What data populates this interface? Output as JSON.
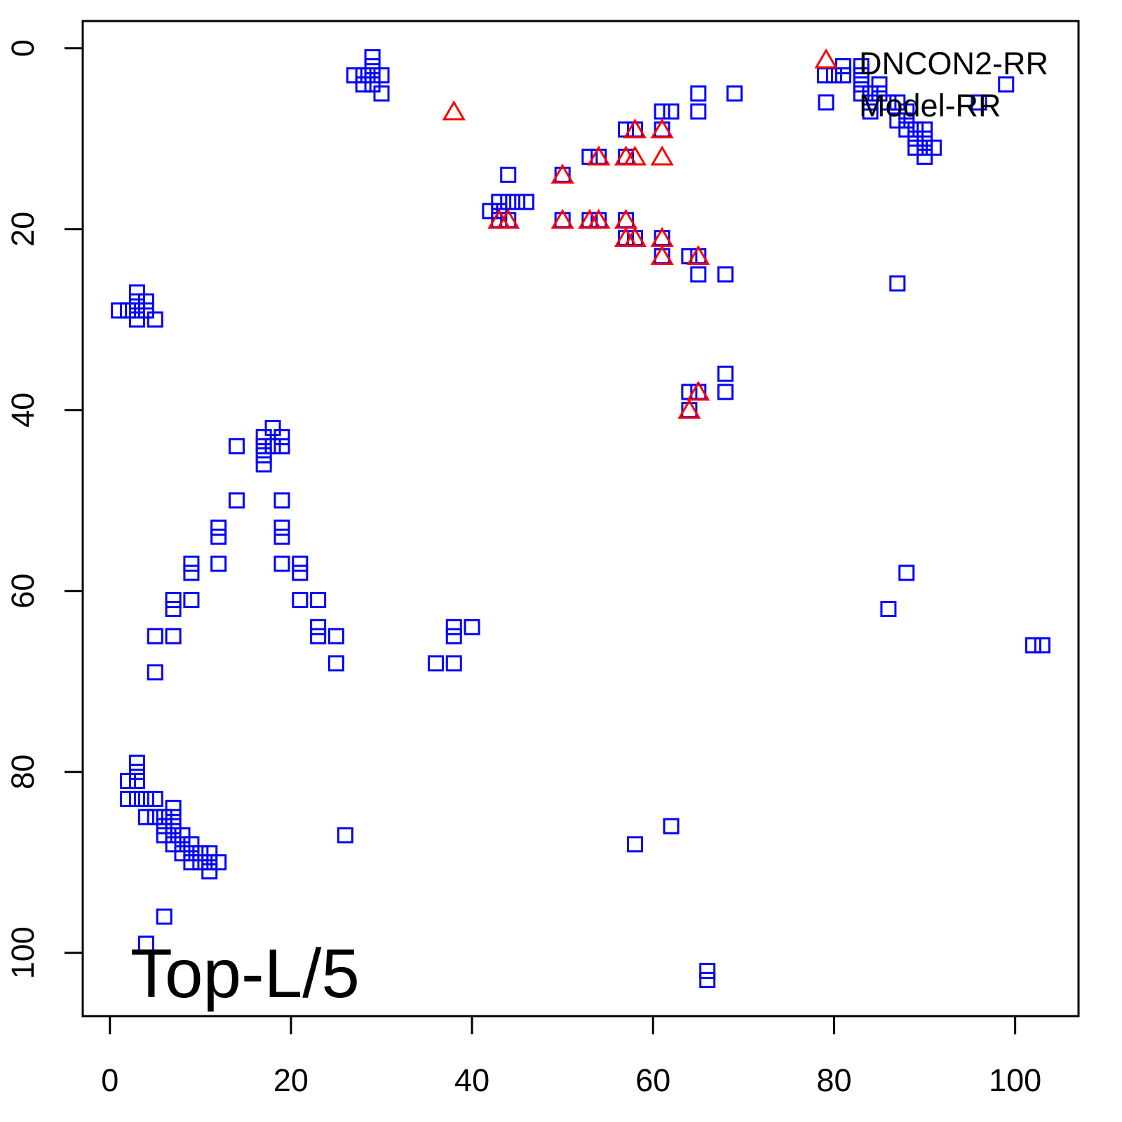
{
  "chart_data": {
    "type": "scatter",
    "title": "",
    "xlabel": "",
    "ylabel": "",
    "xlim": [
      -3,
      107
    ],
    "ylim": [
      -3,
      107
    ],
    "y_inverted": true,
    "grid": false,
    "x_ticks": [
      0,
      20,
      40,
      60,
      80,
      100
    ],
    "y_ticks": [
      0,
      20,
      40,
      60,
      80,
      100
    ],
    "annotation": "Top-L/5",
    "legend": {
      "placement": "top-right",
      "entries": [
        {
          "label": "DNCON2-RR",
          "marker": "triangle",
          "color": "#ff0000"
        },
        {
          "label": "Model-RR",
          "marker": "square",
          "color": "#0000ff"
        }
      ]
    },
    "series": [
      {
        "name": "Model-RR",
        "marker": "square",
        "color": "#0000ff",
        "points": [
          [
            29,
            1
          ],
          [
            29,
            2
          ],
          [
            27,
            3
          ],
          [
            28,
            3
          ],
          [
            29,
            3
          ],
          [
            30,
            3
          ],
          [
            28,
            4
          ],
          [
            29,
            4
          ],
          [
            30,
            5
          ],
          [
            1,
            29
          ],
          [
            2,
            29
          ],
          [
            3,
            27
          ],
          [
            3,
            28
          ],
          [
            4,
            28
          ],
          [
            3,
            29
          ],
          [
            4,
            29
          ],
          [
            3,
            30
          ],
          [
            5,
            30
          ],
          [
            14,
            44
          ],
          [
            14,
            50
          ],
          [
            12,
            53
          ],
          [
            12,
            54
          ],
          [
            12,
            57
          ],
          [
            18,
            42
          ],
          [
            17,
            43
          ],
          [
            19,
            43
          ],
          [
            17,
            44
          ],
          [
            18,
            44
          ],
          [
            19,
            44
          ],
          [
            17,
            45
          ],
          [
            17,
            46
          ],
          [
            19,
            50
          ],
          [
            19,
            53
          ],
          [
            19,
            54
          ],
          [
            19,
            57
          ],
          [
            21,
            57
          ],
          [
            21,
            58
          ],
          [
            21,
            61
          ],
          [
            23,
            61
          ],
          [
            23,
            64
          ],
          [
            23,
            65
          ],
          [
            25,
            65
          ],
          [
            25,
            68
          ],
          [
            9,
            57
          ],
          [
            9,
            58
          ],
          [
            9,
            61
          ],
          [
            7,
            61
          ],
          [
            7,
            62
          ],
          [
            7,
            65
          ],
          [
            5,
            65
          ],
          [
            5,
            69
          ],
          [
            3,
            79
          ],
          [
            3,
            80
          ],
          [
            2,
            81
          ],
          [
            3,
            81
          ],
          [
            2,
            83
          ],
          [
            3,
            83
          ],
          [
            4,
            83
          ],
          [
            5,
            83
          ],
          [
            4,
            85
          ],
          [
            5,
            85
          ],
          [
            6,
            85
          ],
          [
            7,
            84
          ],
          [
            7,
            85
          ],
          [
            6,
            86
          ],
          [
            7,
            86
          ],
          [
            6,
            87
          ],
          [
            7,
            87
          ],
          [
            8,
            87
          ],
          [
            7,
            88
          ],
          [
            8,
            88
          ],
          [
            9,
            88
          ],
          [
            8,
            89
          ],
          [
            9,
            89
          ],
          [
            10,
            89
          ],
          [
            11,
            89
          ],
          [
            9,
            90
          ],
          [
            10,
            90
          ],
          [
            11,
            90
          ],
          [
            12,
            90
          ],
          [
            11,
            91
          ],
          [
            6,
            96
          ],
          [
            4,
            99
          ],
          [
            26,
            87
          ],
          [
            36,
            68
          ],
          [
            38,
            68
          ],
          [
            38,
            64
          ],
          [
            38,
            65
          ],
          [
            40,
            64
          ],
          [
            44,
            14
          ],
          [
            42,
            18
          ],
          [
            43,
            17
          ],
          [
            44,
            17
          ],
          [
            45,
            17
          ],
          [
            46,
            17
          ],
          [
            43,
            19
          ],
          [
            44,
            19
          ],
          [
            43,
            18
          ],
          [
            50,
            14
          ],
          [
            50,
            19
          ],
          [
            53,
            12
          ],
          [
            54,
            12
          ],
          [
            53,
            19
          ],
          [
            54,
            19
          ],
          [
            57,
            9
          ],
          [
            58,
            9
          ],
          [
            57,
            12
          ],
          [
            57,
            19
          ],
          [
            57,
            21
          ],
          [
            58,
            21
          ],
          [
            61,
            7
          ],
          [
            62,
            7
          ],
          [
            61,
            9
          ],
          [
            61,
            21
          ],
          [
            61,
            23
          ],
          [
            64,
            23
          ],
          [
            65,
            23
          ],
          [
            65,
            25
          ],
          [
            68,
            25
          ],
          [
            65,
            5
          ],
          [
            65,
            7
          ],
          [
            69,
            5
          ],
          [
            64,
            38
          ],
          [
            65,
            38
          ],
          [
            64,
            40
          ],
          [
            68,
            36
          ],
          [
            68,
            38
          ],
          [
            79,
            3
          ],
          [
            80,
            3
          ],
          [
            81,
            2
          ],
          [
            81,
            3
          ],
          [
            83,
            2
          ],
          [
            83,
            3
          ],
          [
            83,
            4
          ],
          [
            83,
            5
          ],
          [
            84,
            5
          ],
          [
            84,
            6
          ],
          [
            85,
            4
          ],
          [
            85,
            5
          ],
          [
            84,
            7
          ],
          [
            86,
            6
          ],
          [
            87,
            6
          ],
          [
            87,
            8
          ],
          [
            88,
            7
          ],
          [
            88,
            8
          ],
          [
            88,
            9
          ],
          [
            89,
            9
          ],
          [
            89,
            10
          ],
          [
            90,
            9
          ],
          [
            90,
            10
          ],
          [
            89,
            11
          ],
          [
            90,
            11
          ],
          [
            91,
            11
          ],
          [
            90,
            12
          ],
          [
            96,
            6
          ],
          [
            99,
            4
          ],
          [
            87,
            26
          ],
          [
            88,
            58
          ],
          [
            86,
            62
          ],
          [
            102,
            66
          ],
          [
            103,
            66
          ],
          [
            58,
            88
          ],
          [
            62,
            86
          ],
          [
            66,
            102
          ],
          [
            66,
            103
          ]
        ]
      },
      {
        "name": "DNCON2-RR",
        "marker": "triangle",
        "color": "#ff0000",
        "points": [
          [
            38,
            7
          ],
          [
            50,
            14
          ],
          [
            50,
            19
          ],
          [
            53,
            19
          ],
          [
            54,
            19
          ],
          [
            54,
            12
          ],
          [
            57,
            12
          ],
          [
            58,
            12
          ],
          [
            58,
            9
          ],
          [
            61,
            9
          ],
          [
            61,
            12
          ],
          [
            57,
            19
          ],
          [
            57,
            21
          ],
          [
            58,
            21
          ],
          [
            61,
            21
          ],
          [
            61,
            23
          ],
          [
            65,
            23
          ],
          [
            43,
            19
          ],
          [
            44,
            19
          ],
          [
            64,
            40
          ],
          [
            65,
            38
          ]
        ]
      }
    ]
  }
}
